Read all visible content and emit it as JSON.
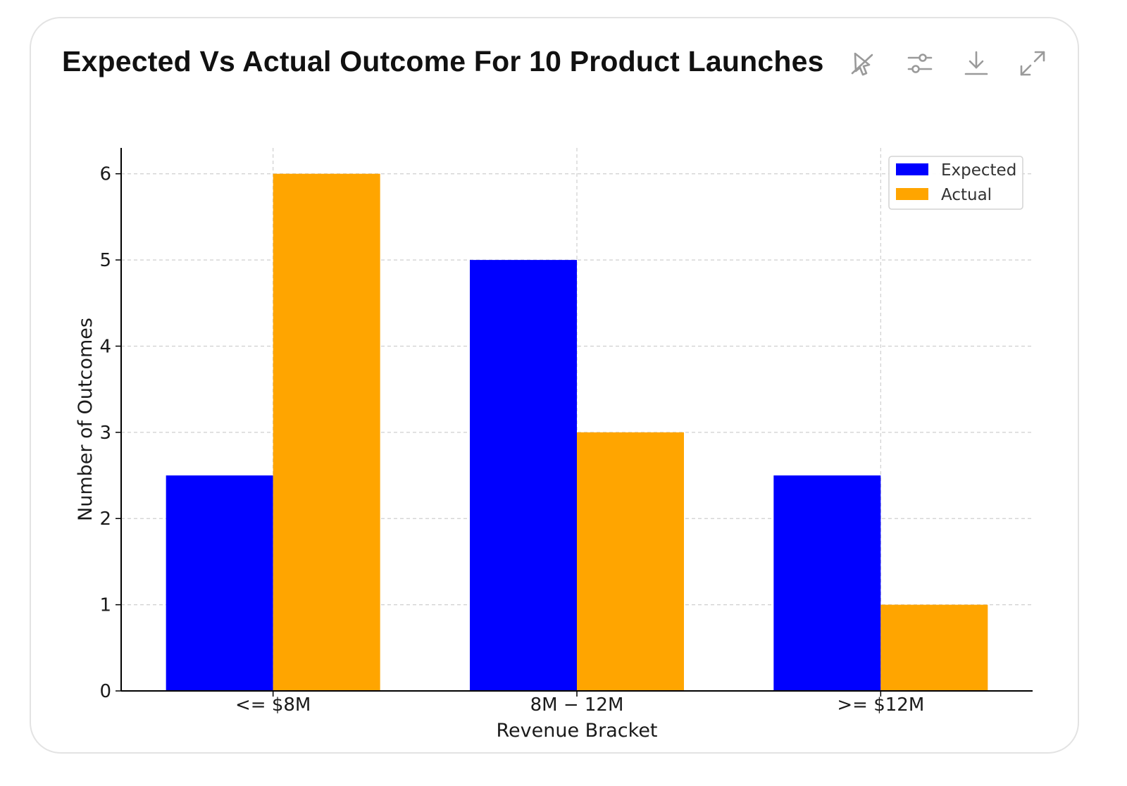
{
  "card": {
    "title": "Expected Vs Actual Outcome For 10 Product Launches"
  },
  "toolbar": [
    {
      "name": "pin-chart-button",
      "icon": "pin-off-icon"
    },
    {
      "name": "chart-settings-button",
      "icon": "sliders-icon"
    },
    {
      "name": "download-button",
      "icon": "download-icon"
    },
    {
      "name": "expand-button",
      "icon": "expand-icon"
    }
  ],
  "chart_data": {
    "type": "bar",
    "title": "",
    "categories": [
      "<= $8M",
      "8M − 12M",
      ">= $12M"
    ],
    "series": [
      {
        "name": "Expected",
        "color": "#0000ff",
        "values": [
          2.5,
          5,
          2.5
        ]
      },
      {
        "name": "Actual",
        "color": "#ffa500",
        "values": [
          6,
          3,
          1
        ]
      }
    ],
    "xlabel": "Revenue Bracket",
    "ylabel": "Number of Outcomes",
    "ylim": [
      0,
      6.3
    ],
    "yticks": [
      0,
      1,
      2,
      3,
      4,
      5,
      6
    ],
    "grid": true,
    "legend": "top-right"
  }
}
